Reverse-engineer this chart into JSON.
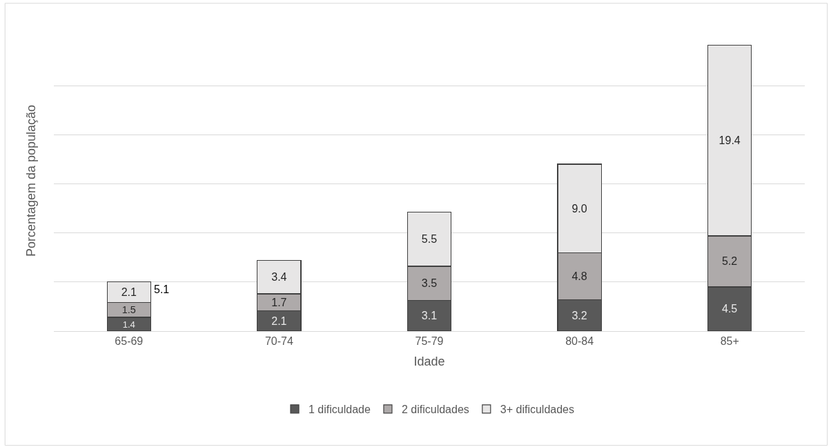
{
  "chart_data": {
    "type": "bar",
    "stacked": true,
    "xlabel": "Idade",
    "ylabel": "Porcentagem da população",
    "categories": [
      "65-69",
      "70-74",
      "75-79",
      "80-84",
      "85+"
    ],
    "series": [
      {
        "name": "1 dificuldade",
        "color": "#595959",
        "values": [
          1.4,
          2.1,
          3.1,
          3.2,
          4.5
        ],
        "value_labels": [
          "1.4",
          "2.1",
          "3.1",
          "3.2",
          "4.5"
        ]
      },
      {
        "name": "2 dificuldades",
        "color": "#aeaaaa",
        "values": [
          1.5,
          1.7,
          3.5,
          4.8,
          5.2
        ],
        "value_labels": [
          "1.5",
          "1.7",
          "3.5",
          "4.8",
          "5.2"
        ]
      },
      {
        "name": "3+ dificuldades",
        "color": "#e7e6e6",
        "values": [
          2.1,
          3.4,
          5.5,
          9.0,
          19.4
        ],
        "value_labels": [
          "2.1",
          "3.4",
          "5.5",
          "9.0",
          "19.4"
        ]
      }
    ],
    "totals": [
      "5.1",
      null,
      null,
      null,
      null
    ],
    "yticks": [
      {
        "value": 0,
        "label": null
      },
      {
        "value": 5,
        "label": null
      },
      {
        "value": 10,
        "label": null
      },
      {
        "value": 15,
        "label": null
      },
      {
        "value": 20,
        "label": null
      },
      {
        "value": 25,
        "label": null
      }
    ],
    "tick_labels": "x",
    "grid": "y",
    "legend": "bottom"
  }
}
